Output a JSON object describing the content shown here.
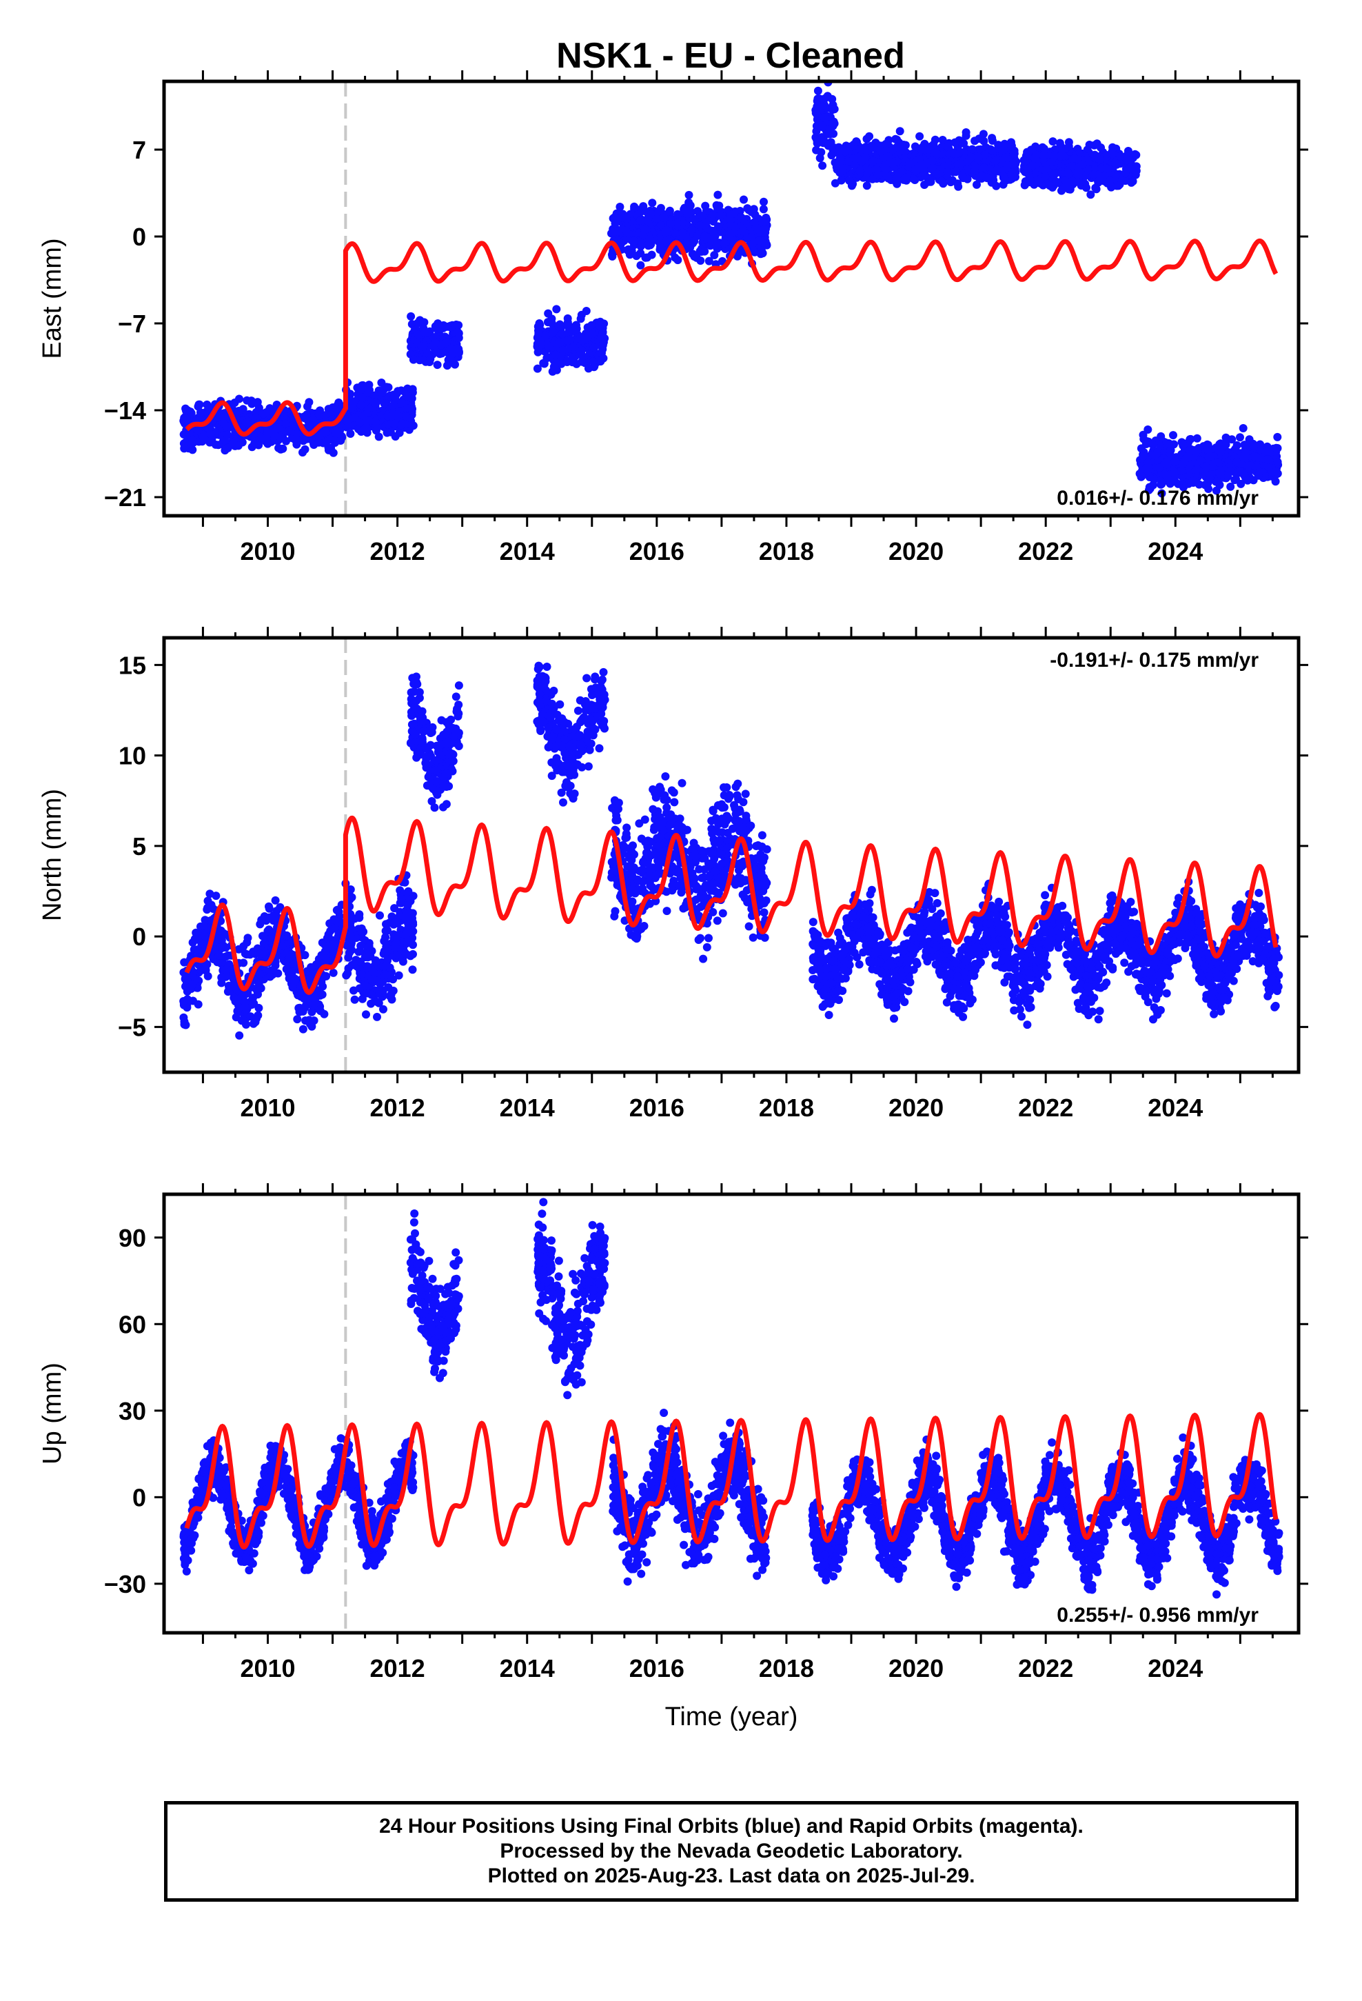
{
  "title": "NSK1  - EU - Cleaned",
  "footer": {
    "line1": "24 Hour Positions Using Final Orbits (blue) and Rapid Orbits (magenta).",
    "line2": "Processed by the Nevada Geodetic Laboratory.",
    "line3": "Plotted on 2025-Aug-23. Last data on 2025-Jul-29."
  },
  "colors": {
    "data": "#1010ff",
    "model": "#ff1010",
    "equipment_change": "#c8c8c8"
  },
  "chart_data": [
    {
      "type": "scatter",
      "component": "East",
      "ylabel": "East (mm)",
      "rate_text": "0.016+/- 0.176 mm/yr",
      "rate_position": "bottom-right",
      "xlim": [
        2008.4,
        2025.9
      ],
      "ylim": [
        -22.5,
        12.5
      ],
      "yticks": [
        7,
        0,
        -7,
        -14,
        -21
      ],
      "ytick_labels": [
        "7",
        "0",
        "−7",
        "−14",
        "−21"
      ],
      "xticks": [
        2010,
        2012,
        2014,
        2016,
        2018,
        2020,
        2022,
        2024
      ],
      "equipment_change_x": 2011.2,
      "data_segments": [
        {
          "x": [
            2008.7,
            2011.15
          ],
          "mean": -15.3,
          "spread": 1.2
        },
        {
          "x": [
            2011.2,
            2012.25
          ],
          "mean": -14.0,
          "spread": 1.3
        },
        {
          "x": [
            2012.2,
            2012.95
          ],
          "mean": -8.5,
          "spread": 1.3
        },
        {
          "x": [
            2014.15,
            2015.2
          ],
          "mean": -8.5,
          "spread": 1.3
        },
        {
          "x": [
            2015.3,
            2017.7
          ],
          "mean": 0.4,
          "spread": 1.5
        },
        {
          "x": [
            2018.45,
            2018.75
          ],
          "mean": 9.0,
          "spread": 1.8
        },
        {
          "x": [
            2018.75,
            2021.55
          ],
          "mean": 6.0,
          "spread": 1.2
        },
        {
          "x": [
            2021.65,
            2023.4
          ],
          "mean": 5.6,
          "spread": 1.2
        },
        {
          "x": [
            2023.45,
            2025.6
          ],
          "mean": -18.2,
          "spread": 1.3
        }
      ],
      "model": {
        "segments": [
          {
            "x": [
              2008.75,
              2011.2
            ],
            "offset": -14.7,
            "amplitude": 1.0
          },
          {
            "x": [
              2011.2,
              2025.55
            ],
            "offset": -2.2,
            "amplitude": 1.2
          }
        ],
        "trend_mm_per_yr": 0.016
      }
    },
    {
      "type": "scatter",
      "component": "North",
      "ylabel": "North (mm)",
      "rate_text": "-0.191+/- 0.175 mm/yr",
      "rate_position": "top-right",
      "xlim": [
        2008.4,
        2025.9
      ],
      "ylim": [
        -7.5,
        16.5
      ],
      "yticks": [
        15,
        10,
        5,
        0,
        -5
      ],
      "ytick_labels": [
        "15",
        "10",
        "5",
        "0",
        "−5"
      ],
      "xticks": [
        2010,
        2012,
        2014,
        2016,
        2018,
        2020,
        2022,
        2024
      ],
      "equipment_change_x": 2011.2,
      "data_segments": [
        {
          "x": [
            2008.7,
            2011.15
          ],
          "mean": -1.5,
          "spread": 1.5
        },
        {
          "x": [
            2011.2,
            2012.25
          ],
          "mean": -0.8,
          "spread": 1.8
        },
        {
          "x": [
            2012.2,
            2012.95
          ],
          "mean": 11.0,
          "spread": 1.6
        },
        {
          "x": [
            2014.15,
            2015.2
          ],
          "mean": 11.5,
          "spread": 1.6
        },
        {
          "x": [
            2015.3,
            2017.7
          ],
          "mean": 4.2,
          "spread": 2.2
        },
        {
          "x": [
            2018.4,
            2025.6
          ],
          "mean": -0.8,
          "spread": 1.4
        }
      ],
      "model": {
        "segments": [
          {
            "x": [
              2008.75,
              2011.2
            ],
            "offset": -2.3,
            "amplitude": 1.8
          },
          {
            "x": [
              2011.2,
              2025.55
            ],
            "offset": 2.6,
            "amplitude": 2.0
          }
        ],
        "trend_mm_per_yr": -0.191
      }
    },
    {
      "type": "scatter",
      "component": "Up",
      "ylabel": "Up (mm)",
      "rate_text": "0.255+/- 0.956 mm/yr",
      "rate_position": "bottom-right",
      "xlim": [
        2008.4,
        2025.9
      ],
      "ylim": [
        -47,
        105
      ],
      "yticks": [
        90,
        60,
        30,
        0,
        -30
      ],
      "ytick_labels": [
        "90",
        "60",
        "30",
        "0",
        "−30"
      ],
      "xticks": [
        2010,
        2012,
        2014,
        2016,
        2018,
        2020,
        2022,
        2024
      ],
      "xlabel": "Time (year)",
      "equipment_change_x": 2011.2,
      "data_segments": [
        {
          "x": [
            2008.7,
            2011.15
          ],
          "mean": -3.0,
          "spread": 6.0
        },
        {
          "x": [
            2011.2,
            2012.25
          ],
          "mean": -2.0,
          "spread": 7.0
        },
        {
          "x": [
            2012.2,
            2012.95
          ],
          "mean": 70.0,
          "spread": 10.0
        },
        {
          "x": [
            2014.15,
            2015.2
          ],
          "mean": 68.0,
          "spread": 12.0
        },
        {
          "x": [
            2015.3,
            2017.7
          ],
          "mean": 0.0,
          "spread": 10.0
        },
        {
          "x": [
            2018.4,
            2025.6
          ],
          "mean": -7.0,
          "spread": 7.0
        }
      ],
      "model": {
        "segments": [
          {
            "x": [
              2008.75,
              2025.55
            ],
            "offset": 3.0,
            "amplitude": 16.5
          }
        ],
        "trend_mm_per_yr": 0.255
      }
    }
  ]
}
